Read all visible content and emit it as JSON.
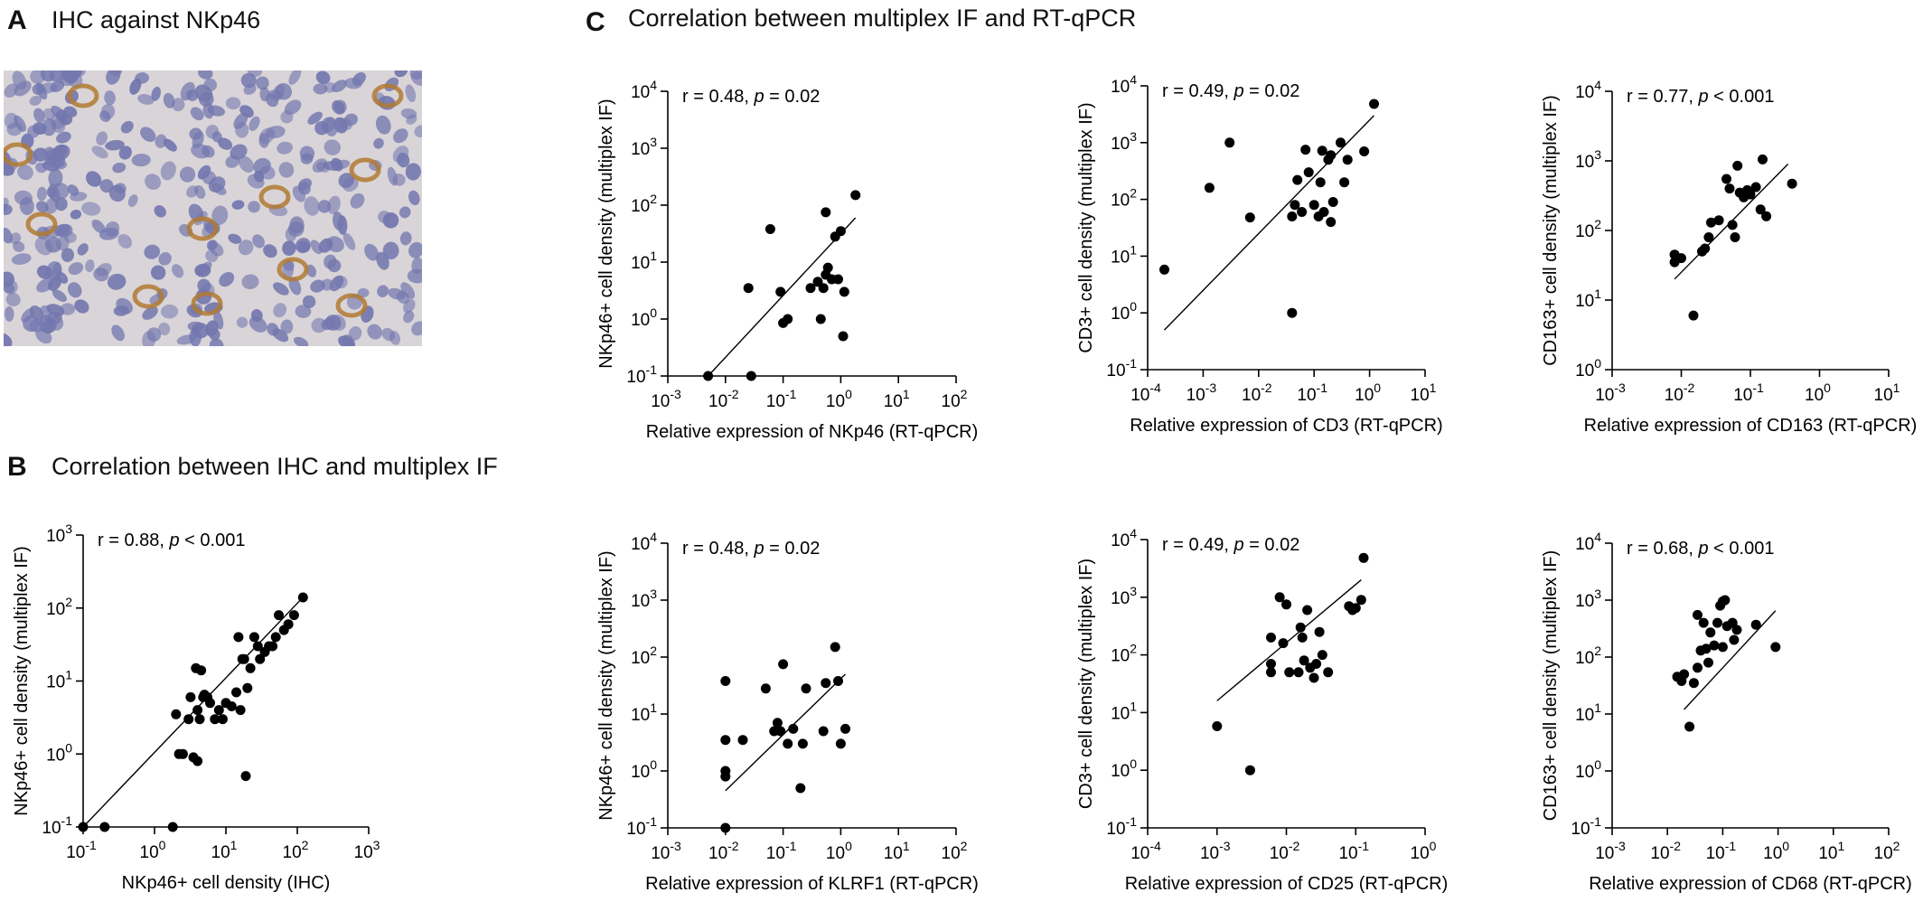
{
  "panels": {
    "A": {
      "letter": "A",
      "title": "IHC against NKp46"
    },
    "B": {
      "letter": "B",
      "title": "Correlation between IHC and multiplex IF"
    },
    "C": {
      "letter": "C",
      "title": "Correlation between multiplex IF and RT-qPCR"
    }
  },
  "colors": {
    "points": "#000000",
    "line": "#000000",
    "tissue_bg": "#d9d4d8",
    "nuclei": "#7377ae",
    "stain": "#b07a33"
  },
  "chart_data": [
    {
      "id": "B",
      "type": "scatter",
      "log_x": true,
      "log_y": true,
      "xlabel": "NKp46+ cell density (IHC)",
      "ylabel": "NKp46+ cell density (multiplex IF)",
      "xlim": [
        0.1,
        1000
      ],
      "ylim": [
        0.1,
        1000
      ],
      "xticks": [
        "10^-1",
        "10^0",
        "10^1",
        "10^2",
        "10^3"
      ],
      "yticks": [
        "10^-1",
        "10^0",
        "10^1",
        "10^2",
        "10^3"
      ],
      "annotation": "r = 0.88, p < 0.001",
      "fit": [
        [
          0.1,
          0.1
        ],
        [
          120,
          140
        ]
      ],
      "points": [
        [
          0.1,
          0.1
        ],
        [
          0.2,
          0.1
        ],
        [
          1.8,
          0.1
        ],
        [
          2.0,
          3.5
        ],
        [
          2.2,
          1.0
        ],
        [
          2.5,
          1.0
        ],
        [
          3.0,
          3.0
        ],
        [
          3.2,
          6.0
        ],
        [
          3.5,
          0.9
        ],
        [
          3.8,
          15
        ],
        [
          4.0,
          0.8
        ],
        [
          4.0,
          4.0
        ],
        [
          4.3,
          3.0
        ],
        [
          4.5,
          14
        ],
        [
          4.8,
          6.0
        ],
        [
          5.0,
          6.5
        ],
        [
          5.5,
          6.0
        ],
        [
          6.0,
          5.0
        ],
        [
          7.0,
          3.0
        ],
        [
          8.0,
          4.0
        ],
        [
          9.0,
          3.0
        ],
        [
          10,
          5.0
        ],
        [
          12,
          4.5
        ],
        [
          14,
          7.0
        ],
        [
          15,
          40
        ],
        [
          16,
          4.0
        ],
        [
          17,
          20
        ],
        [
          18,
          20
        ],
        [
          19,
          0.5
        ],
        [
          20,
          8.0
        ],
        [
          22,
          15
        ],
        [
          25,
          40
        ],
        [
          28,
          30
        ],
        [
          30,
          20
        ],
        [
          35,
          25
        ],
        [
          40,
          30
        ],
        [
          45,
          30
        ],
        [
          50,
          40
        ],
        [
          55,
          80
        ],
        [
          65,
          50
        ],
        [
          75,
          60
        ],
        [
          90,
          80
        ],
        [
          120,
          140
        ]
      ]
    },
    {
      "id": "C1",
      "type": "scatter",
      "log_x": true,
      "log_y": true,
      "xlabel": "Relative expression of NKp46 (RT-qPCR)",
      "ylabel": "NKp46+ cell density (multiplex IF)",
      "xlim": [
        0.001,
        100
      ],
      "ylim": [
        0.1,
        10000
      ],
      "xticks": [
        "10^-3",
        "10^-2",
        "10^-1",
        "10^0",
        "10^1",
        "10^2"
      ],
      "yticks": [
        "10^-1",
        "10^0",
        "10^1",
        "10^2",
        "10^3",
        "10^4"
      ],
      "annotation": "r = 0.48, p = 0.02",
      "fit": [
        [
          0.005,
          0.1
        ],
        [
          1.8,
          60
        ]
      ],
      "points": [
        [
          0.005,
          0.1
        ],
        [
          0.025,
          3.5
        ],
        [
          0.028,
          0.1
        ],
        [
          0.06,
          38
        ],
        [
          0.09,
          3.0
        ],
        [
          0.1,
          0.85
        ],
        [
          0.12,
          1.0
        ],
        [
          0.3,
          3.5
        ],
        [
          0.4,
          4.5
        ],
        [
          0.45,
          1.0
        ],
        [
          0.5,
          3.5
        ],
        [
          0.55,
          6.0
        ],
        [
          0.55,
          75
        ],
        [
          0.6,
          8.0
        ],
        [
          0.7,
          5.0
        ],
        [
          0.8,
          28
        ],
        [
          0.9,
          5.0
        ],
        [
          1.0,
          35
        ],
        [
          1.1,
          0.5
        ],
        [
          1.15,
          3.0
        ],
        [
          1.8,
          150
        ]
      ]
    },
    {
      "id": "C2",
      "type": "scatter",
      "log_x": true,
      "log_y": true,
      "xlabel": "Relative expression of CD3 (RT-qPCR)",
      "ylabel": "CD3+ cell density (multiplex IF)",
      "xlim": [
        0.0001,
        10
      ],
      "ylim": [
        0.1,
        10000
      ],
      "xticks": [
        "10^-4",
        "10^-3",
        "10^-2",
        "10^-1",
        "10^0",
        "10^1"
      ],
      "yticks": [
        "10^-1",
        "10^0",
        "10^1",
        "10^2",
        "10^3",
        "10^4"
      ],
      "annotation": "r = 0.49, p = 0.02",
      "fit": [
        [
          0.0002,
          0.5
        ],
        [
          1.2,
          3000
        ]
      ],
      "points": [
        [
          0.0002,
          5.8
        ],
        [
          0.0013,
          160
        ],
        [
          0.003,
          1000
        ],
        [
          0.007,
          48
        ],
        [
          0.04,
          1.0
        ],
        [
          0.04,
          50
        ],
        [
          0.045,
          80
        ],
        [
          0.05,
          220
        ],
        [
          0.06,
          60
        ],
        [
          0.07,
          750
        ],
        [
          0.08,
          300
        ],
        [
          0.1,
          80
        ],
        [
          0.12,
          50
        ],
        [
          0.13,
          200
        ],
        [
          0.14,
          720
        ],
        [
          0.15,
          60
        ],
        [
          0.18,
          500
        ],
        [
          0.2,
          600
        ],
        [
          0.2,
          40
        ],
        [
          0.22,
          90
        ],
        [
          0.3,
          1000
        ],
        [
          0.35,
          200
        ],
        [
          0.4,
          500
        ],
        [
          0.8,
          700
        ],
        [
          1.2,
          4800
        ]
      ]
    },
    {
      "id": "C3",
      "type": "scatter",
      "log_x": true,
      "log_y": true,
      "xlabel": "Relative expression of CD163 (RT-qPCR)",
      "ylabel": "CD163+ cell density (multiplex IF)",
      "xlim": [
        0.001,
        10
      ],
      "ylim": [
        1,
        10000
      ],
      "xticks": [
        "10^-3",
        "10^-2",
        "10^-1",
        "10^0",
        "10^1"
      ],
      "yticks": [
        "10^0",
        "10^1",
        "10^2",
        "10^3",
        "10^4"
      ],
      "annotation": "r = 0.77, p < 0.001",
      "fit": [
        [
          0.008,
          20
        ],
        [
          0.35,
          900
        ]
      ],
      "points": [
        [
          0.008,
          35
        ],
        [
          0.008,
          45
        ],
        [
          0.01,
          40
        ],
        [
          0.015,
          6.0
        ],
        [
          0.02,
          50
        ],
        [
          0.022,
          55
        ],
        [
          0.025,
          80
        ],
        [
          0.027,
          130
        ],
        [
          0.035,
          140
        ],
        [
          0.045,
          550
        ],
        [
          0.05,
          400
        ],
        [
          0.055,
          120
        ],
        [
          0.06,
          80
        ],
        [
          0.065,
          850
        ],
        [
          0.07,
          350
        ],
        [
          0.08,
          300
        ],
        [
          0.09,
          380
        ],
        [
          0.1,
          330
        ],
        [
          0.12,
          420
        ],
        [
          0.14,
          200
        ],
        [
          0.15,
          1050
        ],
        [
          0.17,
          160
        ],
        [
          0.4,
          470
        ]
      ]
    },
    {
      "id": "C4",
      "type": "scatter",
      "log_x": true,
      "log_y": true,
      "xlabel": "Relative expression of KLRF1 (RT-qPCR)",
      "ylabel": "NKp46+ cell density (multiplex IF)",
      "xlim": [
        0.001,
        100
      ],
      "ylim": [
        0.1,
        10000
      ],
      "xticks": [
        "10^-3",
        "10^-2",
        "10^-1",
        "10^0",
        "10^1",
        "10^2"
      ],
      "yticks": [
        "10^-1",
        "10^0",
        "10^1",
        "10^2",
        "10^3",
        "10^4"
      ],
      "annotation": "r = 0.48, p = 0.02",
      "fit": [
        [
          0.01,
          0.45
        ],
        [
          1.2,
          50
        ]
      ],
      "points": [
        [
          0.01,
          0.1
        ],
        [
          0.01,
          0.8
        ],
        [
          0.01,
          1.0
        ],
        [
          0.01,
          3.5
        ],
        [
          0.01,
          38
        ],
        [
          0.02,
          3.5
        ],
        [
          0.05,
          28
        ],
        [
          0.07,
          5.0
        ],
        [
          0.08,
          7.0
        ],
        [
          0.09,
          5.0
        ],
        [
          0.1,
          75
        ],
        [
          0.12,
          3.0
        ],
        [
          0.15,
          5.5
        ],
        [
          0.2,
          0.5
        ],
        [
          0.22,
          3.0
        ],
        [
          0.25,
          28
        ],
        [
          0.5,
          5.0
        ],
        [
          0.55,
          35
        ],
        [
          0.8,
          150
        ],
        [
          0.9,
          38
        ],
        [
          1.0,
          3.0
        ],
        [
          1.2,
          5.5
        ]
      ]
    },
    {
      "id": "C5",
      "type": "scatter",
      "log_x": true,
      "log_y": true,
      "xlabel": "Relative expression of CD25 (RT-qPCR)",
      "ylabel": "CD3+ cell density (multiplex IF)",
      "xlim": [
        0.0001,
        1
      ],
      "ylim": [
        0.1,
        10000
      ],
      "xticks": [
        "10^-4",
        "10^-3",
        "10^-2",
        "10^-1",
        "10^0"
      ],
      "yticks": [
        "10^-1",
        "10^0",
        "10^1",
        "10^2",
        "10^3",
        "10^4"
      ],
      "annotation": "r = 0.49, p = 0.02",
      "fit": [
        [
          0.001,
          16
        ],
        [
          0.12,
          2000
        ]
      ],
      "points": [
        [
          0.001,
          5.8
        ],
        [
          0.003,
          1.0
        ],
        [
          0.006,
          200
        ],
        [
          0.006,
          50
        ],
        [
          0.006,
          70
        ],
        [
          0.008,
          1000
        ],
        [
          0.009,
          160
        ],
        [
          0.01,
          750
        ],
        [
          0.011,
          50
        ],
        [
          0.015,
          50
        ],
        [
          0.016,
          300
        ],
        [
          0.017,
          200
        ],
        [
          0.018,
          80
        ],
        [
          0.02,
          600
        ],
        [
          0.022,
          60
        ],
        [
          0.025,
          40
        ],
        [
          0.027,
          70
        ],
        [
          0.03,
          250
        ],
        [
          0.033,
          100
        ],
        [
          0.04,
          50
        ],
        [
          0.08,
          700
        ],
        [
          0.09,
          600
        ],
        [
          0.1,
          650
        ],
        [
          0.12,
          900
        ],
        [
          0.13,
          4800
        ]
      ]
    },
    {
      "id": "C6",
      "type": "scatter",
      "log_x": true,
      "log_y": true,
      "xlabel": "Relative expression of CD68 (RT-qPCR)",
      "ylabel": "CD163+ cell density (multiplex IF)",
      "xlim": [
        0.001,
        100
      ],
      "ylim": [
        0.1,
        10000
      ],
      "xticks": [
        "10^-3",
        "10^-2",
        "10^-1",
        "10^0",
        "10^1",
        "10^2"
      ],
      "yticks": [
        "10^-1",
        "10^0",
        "10^1",
        "10^2",
        "10^3",
        "10^4"
      ],
      "annotation": "r = 0.68, p < 0.001",
      "fit": [
        [
          0.02,
          12
        ],
        [
          0.9,
          650
        ]
      ],
      "points": [
        [
          0.015,
          45
        ],
        [
          0.018,
          38
        ],
        [
          0.02,
          50
        ],
        [
          0.025,
          6.0
        ],
        [
          0.03,
          35
        ],
        [
          0.035,
          65
        ],
        [
          0.035,
          550
        ],
        [
          0.04,
          130
        ],
        [
          0.045,
          400
        ],
        [
          0.05,
          140
        ],
        [
          0.055,
          80
        ],
        [
          0.06,
          270
        ],
        [
          0.07,
          160
        ],
        [
          0.08,
          400
        ],
        [
          0.09,
          800
        ],
        [
          0.1,
          150
        ],
        [
          0.1,
          950
        ],
        [
          0.11,
          1000
        ],
        [
          0.12,
          350
        ],
        [
          0.15,
          400
        ],
        [
          0.16,
          200
        ],
        [
          0.18,
          300
        ],
        [
          0.4,
          370
        ],
        [
          0.9,
          150
        ]
      ]
    }
  ]
}
